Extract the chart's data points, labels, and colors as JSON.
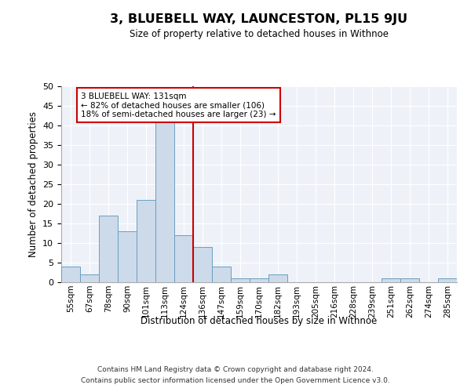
{
  "title": "3, BLUEBELL WAY, LAUNCESTON, PL15 9JU",
  "subtitle": "Size of property relative to detached houses in Withnoe",
  "xlabel": "Distribution of detached houses by size in Withnoe",
  "ylabel": "Number of detached properties",
  "bar_labels": [
    "55sqm",
    "67sqm",
    "78sqm",
    "90sqm",
    "101sqm",
    "113sqm",
    "124sqm",
    "136sqm",
    "147sqm",
    "159sqm",
    "170sqm",
    "182sqm",
    "193sqm",
    "205sqm",
    "216sqm",
    "228sqm",
    "239sqm",
    "251sqm",
    "262sqm",
    "274sqm",
    "285sqm"
  ],
  "bar_values": [
    4,
    2,
    17,
    13,
    21,
    41,
    12,
    9,
    4,
    1,
    1,
    2,
    0,
    0,
    0,
    0,
    0,
    1,
    1,
    0,
    1
  ],
  "bar_color": "#ccdaea",
  "bar_edge_color": "#6a9fc0",
  "vline_color": "#cc0000",
  "ylim": [
    0,
    50
  ],
  "yticks": [
    0,
    5,
    10,
    15,
    20,
    25,
    30,
    35,
    40,
    45,
    50
  ],
  "annotation_line1": "3 BLUEBELL WAY: 131sqm",
  "annotation_line2": "← 82% of detached houses are smaller (106)",
  "annotation_line3": "18% of semi-detached houses are larger (23) →",
  "annotation_box_color": "#cc0000",
  "background_color": "#eef2f8",
  "grid_color": "#ffffff",
  "footer_line1": "Contains HM Land Registry data © Crown copyright and database right 2024.",
  "footer_line2": "Contains public sector information licensed under the Open Government Licence v3.0."
}
